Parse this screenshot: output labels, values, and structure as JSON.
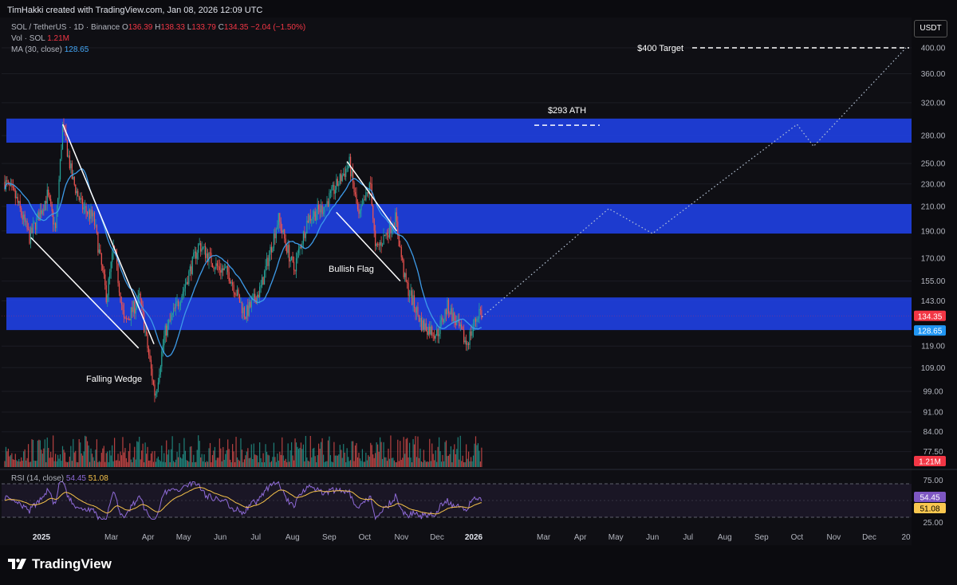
{
  "header": {
    "attribution": "TimHakki created with TradingView.com, Jan 08, 2026 12:09 UTC"
  },
  "legend": {
    "symbol": "SOL / TetherUS · 1D · Binance",
    "o_label": "O",
    "o_value": "136.39",
    "h_label": "H",
    "h_value": "138.33",
    "l_label": "L",
    "l_value": "133.79",
    "c_label": "C",
    "c_value": "134.35",
    "change": "−2.04 (−1.50%)",
    "vol_label": "Vol · SOL",
    "vol_value": "1.21M",
    "ma_label": "MA (30, close)",
    "ma_value": "128.65",
    "rsi_label": "RSI (14, close)",
    "rsi_value": "54.45",
    "rsi_ma_value": "51.08"
  },
  "currency_button": "USDT",
  "brand": "TradingView",
  "colors": {
    "background": "#0b0b0f",
    "zone": "#1e3fe0",
    "up": "#26a69a",
    "down": "#ef5350",
    "ma": "#3d9be9",
    "rsi": "#8f6bd8",
    "rsi_ma": "#f5c24a",
    "price_tag": "#f23645",
    "ma_tag": "#2196f3",
    "rsi_tag": "#7e57c2",
    "rsi_ma_tag": "#f9c74f"
  },
  "chart_data": {
    "type": "candlestick",
    "log_scale": true,
    "y_ticks": [
      "400.00",
      "360.00",
      "320.00",
      "280.00",
      "250.00",
      "230.00",
      "210.00",
      "190.00",
      "170.00",
      "155.00",
      "143.00",
      "119.00",
      "109.00",
      "99.00",
      "91.00",
      "84.00",
      "77.50"
    ],
    "x_labels": [
      "2025",
      "Mar",
      "Apr",
      "May",
      "Jun",
      "Jul",
      "Aug",
      "Sep",
      "Oct",
      "Nov",
      "Dec",
      "2026",
      "Mar",
      "Apr",
      "May",
      "Jun",
      "Jul",
      "Aug",
      "Sep",
      "Oct",
      "Nov",
      "Dec",
      "20"
    ],
    "rsi_ticks": [
      "75.00",
      "25.00"
    ],
    "price_tags": {
      "close": "134.35",
      "ma": "128.65",
      "volume": "1.21M",
      "rsi": "54.45",
      "rsi_ma": "51.08"
    },
    "zones": [
      {
        "low": 272,
        "high": 300
      },
      {
        "low": 188,
        "high": 212
      },
      {
        "low": 127,
        "high": 145
      }
    ],
    "annotations": [
      {
        "text": "$400 Target",
        "price": 400
      },
      {
        "text": "$293 ATH",
        "price": 293
      },
      {
        "text": "Falling Wedge"
      },
      {
        "text": "Bullish Flag"
      }
    ],
    "projection_path": [
      {
        "date": "2026-01-08",
        "price": 134
      },
      {
        "date": "2026-04-25",
        "price": 208
      },
      {
        "date": "2026-06-01",
        "price": 188
      },
      {
        "date": "2026-10-01",
        "price": 293
      },
      {
        "date": "2026-10-15",
        "price": 268
      },
      {
        "date": "2027-01-01",
        "price": 400
      }
    ],
    "price_path": [
      {
        "date": "2024-12-01",
        "price": 232
      },
      {
        "date": "2024-12-10",
        "price": 218
      },
      {
        "date": "2024-12-22",
        "price": 185
      },
      {
        "date": "2025-01-06",
        "price": 220
      },
      {
        "date": "2025-01-13",
        "price": 190
      },
      {
        "date": "2025-01-19",
        "price": 293
      },
      {
        "date": "2025-01-27",
        "price": 235
      },
      {
        "date": "2025-02-04",
        "price": 210
      },
      {
        "date": "2025-02-14",
        "price": 200
      },
      {
        "date": "2025-02-25",
        "price": 145
      },
      {
        "date": "2025-03-03",
        "price": 178
      },
      {
        "date": "2025-03-12",
        "price": 130
      },
      {
        "date": "2025-03-25",
        "price": 145
      },
      {
        "date": "2025-04-07",
        "price": 97
      },
      {
        "date": "2025-04-15",
        "price": 125
      },
      {
        "date": "2025-05-01",
        "price": 150
      },
      {
        "date": "2025-05-14",
        "price": 180
      },
      {
        "date": "2025-05-28",
        "price": 165
      },
      {
        "date": "2025-06-08",
        "price": 160
      },
      {
        "date": "2025-06-22",
        "price": 135
      },
      {
        "date": "2025-07-05",
        "price": 150
      },
      {
        "date": "2025-07-20",
        "price": 200
      },
      {
        "date": "2025-08-02",
        "price": 162
      },
      {
        "date": "2025-08-14",
        "price": 200
      },
      {
        "date": "2025-08-28",
        "price": 210
      },
      {
        "date": "2025-09-18",
        "price": 250
      },
      {
        "date": "2025-09-26",
        "price": 200
      },
      {
        "date": "2025-10-06",
        "price": 230
      },
      {
        "date": "2025-10-10",
        "price": 175
      },
      {
        "date": "2025-10-27",
        "price": 200
      },
      {
        "date": "2025-11-04",
        "price": 155
      },
      {
        "date": "2025-11-18",
        "price": 130
      },
      {
        "date": "2025-12-01",
        "price": 125
      },
      {
        "date": "2025-12-10",
        "price": 140
      },
      {
        "date": "2025-12-26",
        "price": 120
      },
      {
        "date": "2026-01-06",
        "price": 138
      },
      {
        "date": "2026-01-08",
        "price": 134.35
      }
    ]
  }
}
